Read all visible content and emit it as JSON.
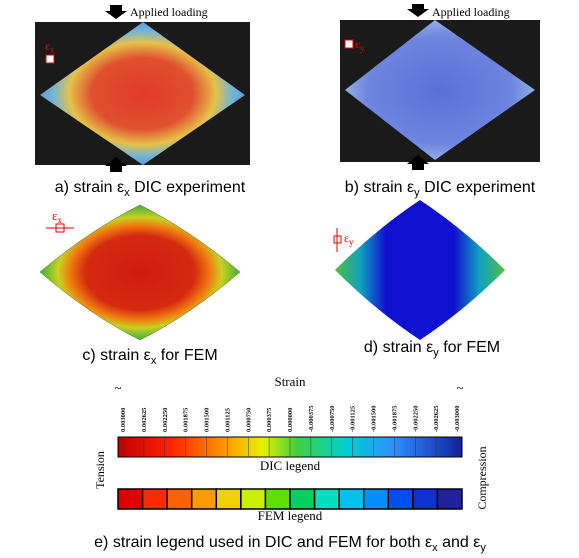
{
  "panels": [
    {
      "caption": {
        "text": "a) strain ε",
        "sub": "x",
        "rest": " DIC experiment"
      },
      "load_label": "Applied loading",
      "symbol": {
        "text": "ε",
        "sub": "x"
      }
    },
    {
      "caption": {
        "text": "b) strain ε",
        "sub": "y",
        "rest": " DIC experiment"
      },
      "load_label": "Applied loading",
      "symbol": {
        "text": "ε",
        "sub": "y"
      }
    },
    {
      "caption": {
        "text": "c) strain ε",
        "sub": "x",
        "rest": " for FEM"
      },
      "symbol": {
        "text": "ε",
        "sub": "x"
      }
    },
    {
      "caption": {
        "text": "d) strain ε",
        "sub": "y",
        "rest": " for FEM"
      },
      "symbol": {
        "text": "ε",
        "sub": "y"
      }
    }
  ],
  "legend": {
    "title": "Strain",
    "ends": [
      "~",
      "~"
    ],
    "ticks": [
      "0.003000",
      "0.002625",
      "0.002250",
      "0.001875",
      "0.001500",
      "0.001125",
      "0.000750",
      "0.000375",
      "0.000000",
      "-0.000375",
      "-0.000750",
      "-0.001125",
      "-0.001500",
      "-0.001875",
      "-0.002250",
      "-0.002625",
      "-0.003000"
    ],
    "dic_label": "DIC legend",
    "fem_label": "FEM legend",
    "left_label": "Tension",
    "right_label": "Compression",
    "caption": {
      "text": "e) strain legend used in DIC and FEM for both ε",
      "sub1": "x",
      "mid": " and ε",
      "sub2": "y"
    }
  }
}
